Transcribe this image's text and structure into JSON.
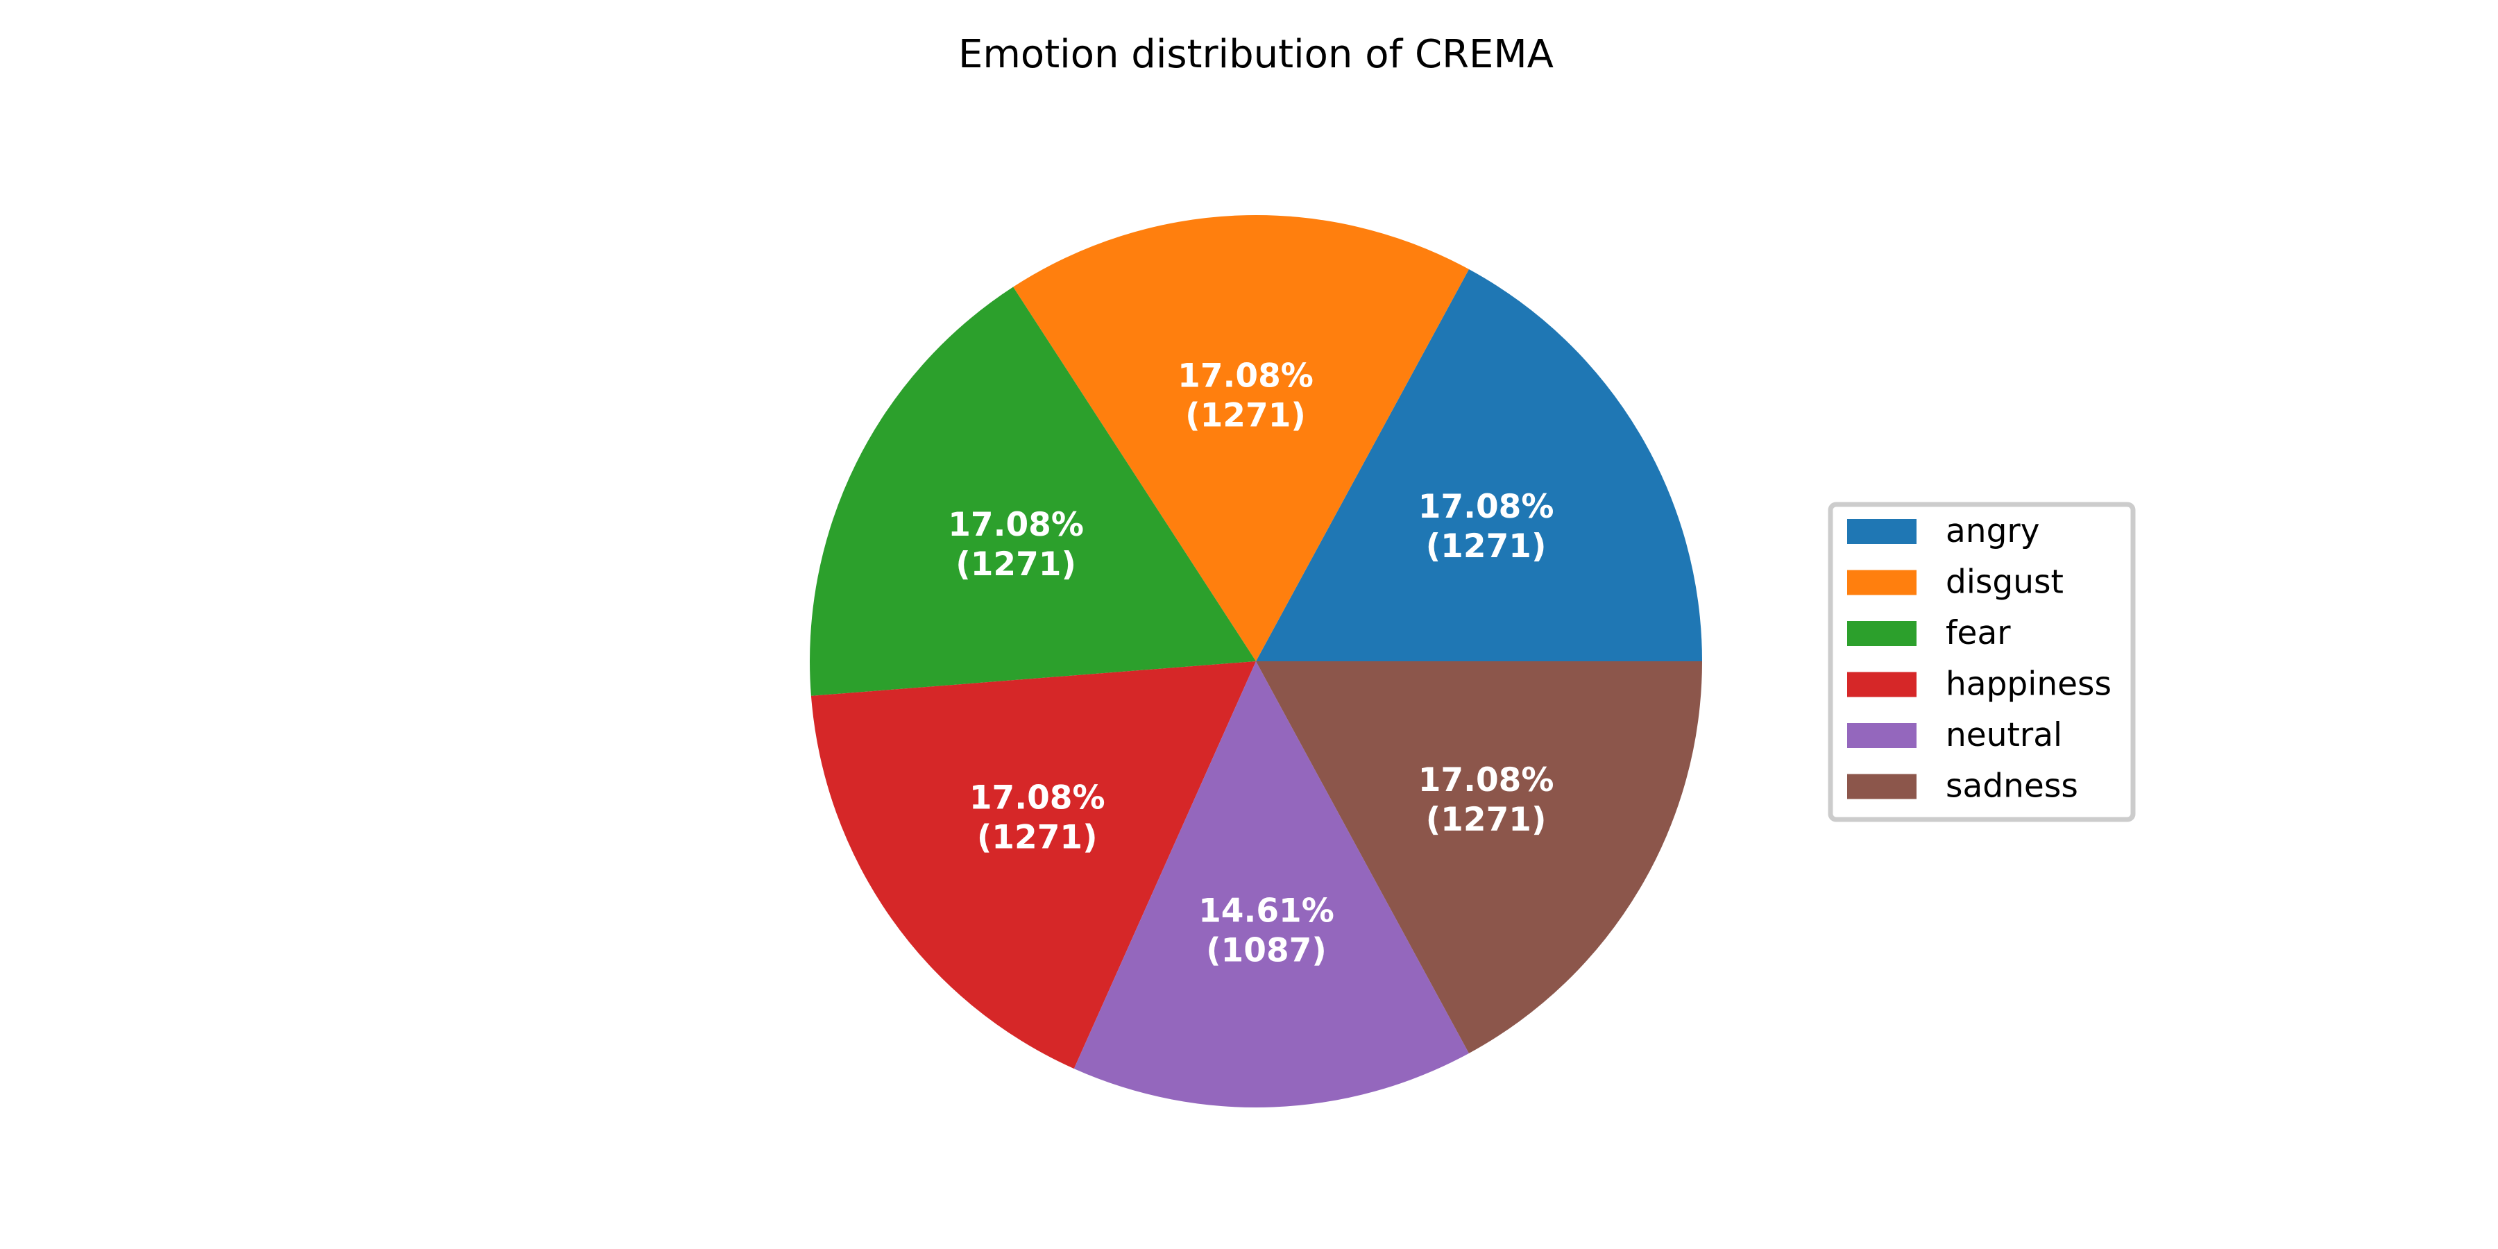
{
  "chart_data": {
    "type": "pie",
    "title": "Emotion distribution of CREMA",
    "labels": [
      "angry",
      "disgust",
      "fear",
      "happiness",
      "neutral",
      "sadness"
    ],
    "values": [
      1271,
      1271,
      1271,
      1271,
      1087,
      1271
    ],
    "percent_labels": [
      "17.08%",
      "17.08%",
      "17.08%",
      "17.08%",
      "14.61%",
      "17.08%"
    ],
    "count_labels": [
      "(1271)",
      "(1271)",
      "(1271)",
      "(1271)",
      "(1087)",
      "(1271)"
    ],
    "colors": [
      "#1f77b4",
      "#ff7f0e",
      "#2ca02c",
      "#d62728",
      "#9467bd",
      "#8c564b"
    ],
    "start_angle_deg": 0,
    "direction": "counterclockwise",
    "legend_position": "right"
  }
}
